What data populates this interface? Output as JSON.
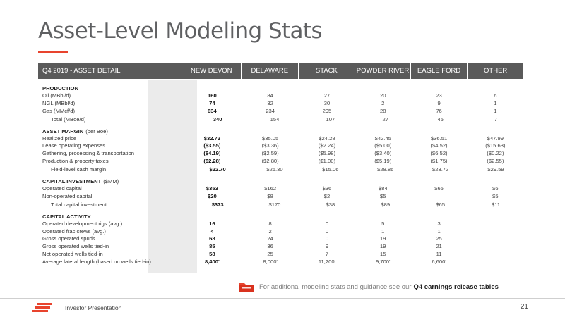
{
  "title": "Asset-Level Modeling Stats",
  "header": {
    "label": "Q4 2019 - ASSET DETAIL",
    "columns": [
      "NEW DEVON",
      "DELAWARE",
      "STACK",
      "POWDER RIVER",
      "EAGLE FORD",
      "OTHER"
    ]
  },
  "sections": [
    {
      "title": "PRODUCTION",
      "subtitle": "",
      "rows": [
        {
          "label": "Oil (MBbl/d)",
          "values": [
            "160",
            "84",
            "27",
            "20",
            "23",
            "6"
          ]
        },
        {
          "label": "NGL (MBbl/d)",
          "values": [
            "74",
            "32",
            "30",
            "2",
            "9",
            "1"
          ]
        },
        {
          "label": "Gas (MMcf/d)",
          "values": [
            "634",
            "234",
            "295",
            "28",
            "76",
            "1"
          ]
        },
        {
          "label": "Total (MBoe/d)",
          "values": [
            "340",
            "154",
            "107",
            "27",
            "45",
            "7"
          ],
          "total": true
        }
      ]
    },
    {
      "title": "ASSET MARGIN",
      "subtitle": "(per Boe)",
      "rows": [
        {
          "label": "Realized price",
          "values": [
            "$32.72",
            "$35.05",
            "$24.28",
            "$42.45",
            "$36.51",
            "$47.99"
          ]
        },
        {
          "label": "Lease operating expenses",
          "values": [
            "($3.55)",
            "($3.36)",
            "($2.24)",
            "($5.00)",
            "($4.52)",
            "($15.63)"
          ]
        },
        {
          "label": "Gathering, processing & transportation",
          "values": [
            "($4.19)",
            "($2.59)",
            "($5.98)",
            "($3.40)",
            "($6.52)",
            "($0.22)"
          ]
        },
        {
          "label": "Production & property taxes",
          "values": [
            "($2.28)",
            "($2.80)",
            "($1.00)",
            "($5.19)",
            "($1.75)",
            "($2.55)"
          ]
        },
        {
          "label": "Field-level cash margin",
          "values": [
            "$22.70",
            "$26.30",
            "$15.06",
            "$28.86",
            "$23.72",
            "$29.59"
          ],
          "total": true
        }
      ]
    },
    {
      "title": "CAPITAL INVESTMENT",
      "subtitle": "($MM)",
      "rows": [
        {
          "label": "Operated capital",
          "values": [
            "$353",
            "$162",
            "$36",
            "$84",
            "$65",
            "$6"
          ]
        },
        {
          "label": "Non-operated capital",
          "values": [
            "$20",
            "$8",
            "$2",
            "$5",
            "–",
            "$5"
          ]
        },
        {
          "label": "Total capital investment",
          "values": [
            "$373",
            "$170",
            "$38",
            "$89",
            "$65",
            "$11"
          ],
          "total": true
        }
      ]
    },
    {
      "title": "CAPITAL ACTIVITY",
      "subtitle": "",
      "rows": [
        {
          "label": "Operated development rigs (avg.)",
          "values": [
            "16",
            "8",
            "0",
            "5",
            "3",
            ""
          ]
        },
        {
          "label": "Operated frac crews (avg.)",
          "values": [
            "4",
            "2",
            "0",
            "1",
            "1",
            ""
          ]
        },
        {
          "label": "Gross operated spuds",
          "values": [
            "68",
            "24",
            "0",
            "19",
            "25",
            ""
          ]
        },
        {
          "label": "Gross operated wells tied-in",
          "values": [
            "85",
            "36",
            "9",
            "19",
            "21",
            ""
          ]
        },
        {
          "label": "Net operated wells tied-in",
          "values": [
            "58",
            "25",
            "7",
            "15",
            "11",
            ""
          ]
        },
        {
          "label": "Average lateral length (based on wells tied-in)",
          "values": [
            "8,400'",
            "8,000'",
            "11,200'",
            "9,700'",
            "6,600'",
            ""
          ]
        }
      ]
    }
  ],
  "note": {
    "text": "For additional modeling stats and guidance see our",
    "link": "Q4 earnings release tables",
    "icon": "folder-icon"
  },
  "footer": {
    "label": "Investor Presentation",
    "page": "21"
  },
  "colors": {
    "accent": "#e8442e",
    "header_bg": "#5a5a5a",
    "highlight_column": "#ebebeb"
  }
}
